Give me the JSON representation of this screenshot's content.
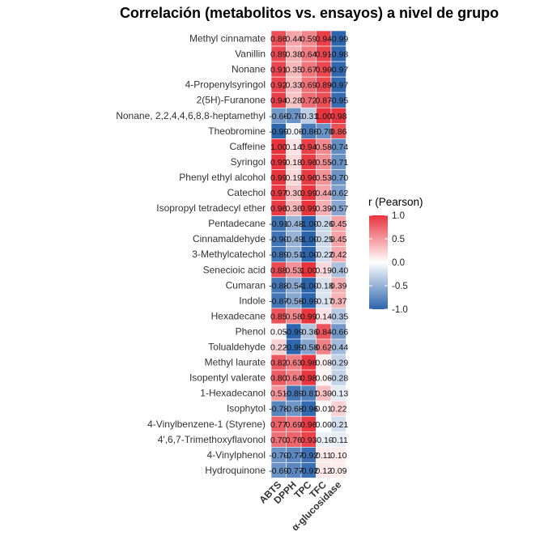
{
  "chart_data": {
    "type": "heatmap",
    "title": "Correlación (metabolitos vs. ensayos) a nivel de grupo",
    "columns": [
      "ABTS",
      "DPPH",
      "TPC",
      "TFC",
      "α-glucosidase"
    ],
    "rows": [
      {
        "name": "Methyl cinnamate",
        "values": [
          0.86,
          0.44,
          0.59,
          0.94,
          -0.99
        ],
        "labels": [
          "0.86",
          "0.44",
          "0.59",
          "0.94",
          "-0.99"
        ]
      },
      {
        "name": "Vanillin",
        "values": [
          0.89,
          0.38,
          0.64,
          0.91,
          -0.98
        ],
        "labels": [
          "0.89",
          "0.38",
          "0.64",
          "0.91",
          "-0.98"
        ]
      },
      {
        "name": "Nonane",
        "values": [
          0.91,
          0.35,
          0.67,
          0.9,
          -0.97
        ],
        "labels": [
          "0.91",
          "0.35",
          "0.67",
          "0.90",
          "-0.97"
        ]
      },
      {
        "name": "4-Propenylsyringol",
        "values": [
          0.92,
          0.33,
          0.69,
          0.89,
          -0.97
        ],
        "labels": [
          "0.92",
          "0.33",
          "0.69",
          "0.89",
          "-0.97"
        ]
      },
      {
        "name": "2(5H)-Furanone",
        "values": [
          0.94,
          0.28,
          0.72,
          0.87,
          -0.95
        ],
        "labels": [
          "0.94",
          "0.28",
          "0.72",
          "0.87",
          "-0.95"
        ]
      },
      {
        "name": "Nonane, 2,2,4,4,6,8,8-heptamethyl",
        "values": [
          -0.66,
          -0.7,
          -0.31,
          1.0,
          0.98
        ],
        "labels": [
          "-0.66",
          "-0.70",
          "-0.31",
          "1.00",
          "0.98"
        ]
      },
      {
        "name": "Theobromine",
        "values": [
          -0.99,
          -0.06,
          -0.86,
          -0.7,
          0.86
        ],
        "labels": [
          "-0.99",
          "-0.06",
          "-0.86",
          "-0.70",
          "0.86"
        ]
      },
      {
        "name": "Caffeine",
        "values": [
          1.0,
          0.14,
          0.94,
          0.58,
          -0.74
        ],
        "labels": [
          "1.00",
          "0.14",
          "0.94",
          "0.58",
          "-0.74"
        ]
      },
      {
        "name": "Syringol",
        "values": [
          0.99,
          0.18,
          0.96,
          0.55,
          -0.71
        ],
        "labels": [
          "0.99",
          "0.18",
          "0.96",
          "0.55",
          "-0.71"
        ]
      },
      {
        "name": "Phenyl ethyl alcohol",
        "values": [
          0.99,
          0.19,
          0.96,
          0.53,
          -0.7
        ],
        "labels": [
          "0.99",
          "0.19",
          "0.96",
          "0.53",
          "-0.70"
        ]
      },
      {
        "name": "Catechol",
        "values": [
          0.97,
          0.3,
          0.99,
          0.44,
          -0.62
        ],
        "labels": [
          "0.97",
          "0.30",
          "0.99",
          "0.44",
          "-0.62"
        ]
      },
      {
        "name": "Isopropyl tetradecyl ether",
        "values": [
          0.96,
          0.36,
          0.99,
          0.39,
          -0.57
        ],
        "labels": [
          "0.96",
          "0.36",
          "0.99",
          "0.39",
          "-0.57"
        ]
      },
      {
        "name": "Pentadecane",
        "values": [
          -0.91,
          -0.48,
          -1.0,
          -0.26,
          0.45
        ],
        "labels": [
          "-0.91",
          "-0.48",
          "-1.00",
          "-0.26",
          "0.45"
        ]
      },
      {
        "name": "Cinnamaldehyde",
        "values": [
          -0.9,
          -0.49,
          -1.0,
          -0.25,
          0.45
        ],
        "labels": [
          "-0.90",
          "-0.49",
          "-1.00",
          "-0.25",
          "0.45"
        ]
      },
      {
        "name": "3-Methylcatechol",
        "values": [
          -0.89,
          -0.51,
          -1.0,
          -0.22,
          0.42
        ],
        "labels": [
          "-0.89",
          "-0.51",
          "-1.00",
          "-0.22",
          "0.42"
        ]
      },
      {
        "name": "Senecioic acid",
        "values": [
          0.88,
          0.53,
          1.0,
          0.19,
          -0.4
        ],
        "labels": [
          "0.88",
          "0.53",
          "1.00",
          "0.19",
          "-0.40"
        ]
      },
      {
        "name": "Cumaran",
        "values": [
          -0.88,
          -0.54,
          -1.0,
          -0.18,
          0.39
        ],
        "labels": [
          "-0.88",
          "-0.54",
          "-1.00",
          "-0.18",
          "0.39"
        ]
      },
      {
        "name": "Indole",
        "values": [
          -0.87,
          -0.56,
          -0.99,
          -0.17,
          0.37
        ],
        "labels": [
          "-0.87",
          "-0.56",
          "-0.99",
          "-0.17",
          "0.37"
        ]
      },
      {
        "name": "Hexadecane",
        "values": [
          0.85,
          0.58,
          0.99,
          0.14,
          -0.35
        ],
        "labels": [
          "0.85",
          "0.58",
          "0.99",
          "0.14",
          "-0.35"
        ]
      },
      {
        "name": "Phenol",
        "values": [
          0.05,
          -0.99,
          -0.36,
          0.84,
          -0.66
        ],
        "labels": [
          "0.05",
          "-0.99",
          "-0.36",
          "0.84",
          "-0.66"
        ]
      },
      {
        "name": "Tolualdehyde",
        "values": [
          0.22,
          -0.99,
          -0.58,
          0.62,
          -0.44
        ],
        "labels": [
          "0.22",
          "-0.99",
          "-0.58",
          "0.62",
          "-0.44"
        ]
      },
      {
        "name": "Methyl laurate",
        "values": [
          0.82,
          0.63,
          0.98,
          0.08,
          -0.29
        ],
        "labels": [
          "0.82",
          "0.63",
          "0.98",
          "0.08",
          "-0.29"
        ]
      },
      {
        "name": "Isopentyl valerate",
        "values": [
          0.8,
          0.64,
          0.98,
          0.06,
          -0.28
        ],
        "labels": [
          "0.80",
          "0.64",
          "0.98",
          "0.06",
          "-0.28"
        ]
      },
      {
        "name": "1-Hexadecanol",
        "values": [
          0.51,
          -0.89,
          -0.81,
          0.3,
          -0.13
        ],
        "labels": [
          "0.51",
          "-0.89",
          "-0.81",
          "0.30",
          "-0.13"
        ]
      },
      {
        "name": "Isophytol",
        "values": [
          -0.78,
          -0.68,
          -0.96,
          0.01,
          0.22
        ],
        "labels": [
          "-0.78",
          "-0.68",
          "-0.96",
          "0.01",
          "0.22"
        ]
      },
      {
        "name": "4-Vinylbenzene-1 (Styrene)",
        "values": [
          0.77,
          0.69,
          0.96,
          0.0,
          -0.21
        ],
        "labels": [
          "0.77",
          "0.69",
          "0.96",
          "0.00",
          "-0.21"
        ]
      },
      {
        "name": "4',6,7-Trimethoxyflavonol",
        "values": [
          0.7,
          0.76,
          0.93,
          -0.1,
          -0.11
        ],
        "labels": [
          "0.70",
          "0.76",
          "0.93",
          "-0.10",
          "-0.11"
        ]
      },
      {
        "name": "4-Vinylphenol",
        "values": [
          -0.7,
          -0.77,
          -0.92,
          0.11,
          0.1
        ],
        "labels": [
          "-0.70",
          "-0.77",
          "-0.92",
          "0.11",
          "0.10"
        ]
      },
      {
        "name": "Hydroquinone",
        "values": [
          -0.69,
          -0.77,
          -0.92,
          0.12,
          0.09
        ],
        "labels": [
          "-0.69",
          "-0.77",
          "-0.92",
          "0.12",
          "0.09"
        ]
      }
    ],
    "legend": {
      "title": "r (Pearson)",
      "ticks": [
        "1.0",
        "0.5",
        "0.0",
        "-0.5",
        "-1.0"
      ],
      "tick_values": [
        1.0,
        0.5,
        0.0,
        -0.5,
        -1.0
      ],
      "range": [
        -1,
        1
      ],
      "placement": "right"
    },
    "colors": {
      "low": "#2c64ac",
      "mid": "#ffffff",
      "high": "#e8333c",
      "grid": "#ffffff"
    }
  }
}
